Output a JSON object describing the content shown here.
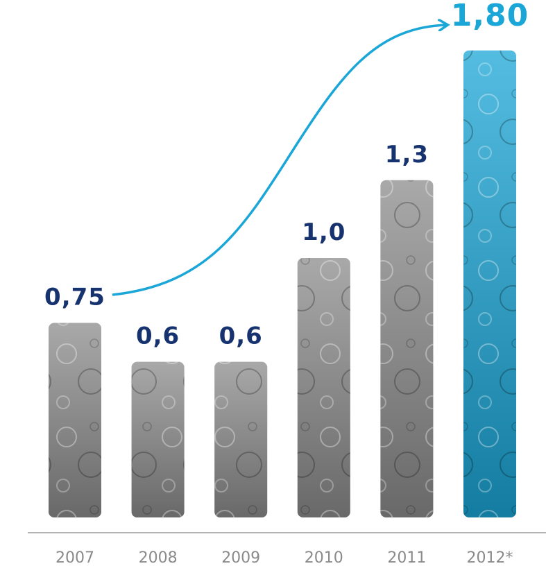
{
  "chart_data": {
    "type": "bar",
    "categories": [
      "2007",
      "2008",
      "2009",
      "2010",
      "2011",
      "2012*"
    ],
    "values": [
      0.75,
      0.6,
      0.6,
      1.0,
      1.3,
      1.8
    ],
    "value_labels": [
      "0,75",
      "0,6",
      "0,6",
      "1,0",
      "1,3",
      "1,80"
    ],
    "colors": [
      "#8c8c8c",
      "#8c8c8c",
      "#8c8c8c",
      "#8c8c8c",
      "#8c8c8c",
      "#1aa6d6"
    ],
    "label_colors": [
      "#17336f",
      "#17336f",
      "#17336f",
      "#17336f",
      "#17336f",
      "#1aa6d6"
    ]
  }
}
